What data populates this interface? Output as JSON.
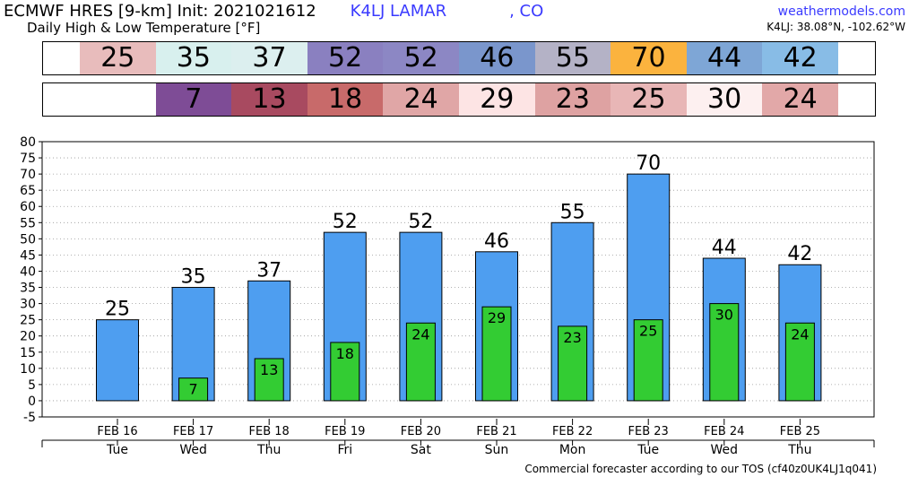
{
  "header": {
    "title": "ECMWF HRES [9-km] Init: 2021021612",
    "station": "K4LJ LAMAR",
    "state": ", CO",
    "subtitle": "Daily High & Low Temperature [°F]",
    "site": "weathermodels.com",
    "coords": "K4LJ: 38.08°N, -102.62°W"
  },
  "footer": "Commercial forecaster according to our TOS (cf40z0UK4LJ1q041)",
  "strips": {
    "high": [
      {
        "value": "25",
        "color": "#e8bcbc"
      },
      {
        "value": "35",
        "color": "#d8f0ee"
      },
      {
        "value": "37",
        "color": "#dcefef"
      },
      {
        "value": "52",
        "color": "#8a80c0"
      },
      {
        "value": "52",
        "color": "#8c87c4"
      },
      {
        "value": "46",
        "color": "#7a96cc"
      },
      {
        "value": "55",
        "color": "#b4b2c6"
      },
      {
        "value": "70",
        "color": "#fbb33e"
      },
      {
        "value": "44",
        "color": "#7ea6d6"
      },
      {
        "value": "42",
        "color": "#88bce6"
      }
    ],
    "low": [
      {
        "value": "",
        "color": "#ffffff"
      },
      {
        "value": "7",
        "color": "#7e4c96"
      },
      {
        "value": "13",
        "color": "#a84a60"
      },
      {
        "value": "18",
        "color": "#c86a6a"
      },
      {
        "value": "24",
        "color": "#e0a6a6"
      },
      {
        "value": "29",
        "color": "#fde4e4"
      },
      {
        "value": "23",
        "color": "#dea2a2"
      },
      {
        "value": "25",
        "color": "#e8b6b6"
      },
      {
        "value": "30",
        "color": "#fdf0f0"
      },
      {
        "value": "24",
        "color": "#e2a8a8"
      }
    ]
  },
  "chart_data": {
    "type": "bar",
    "categories": [
      "FEB 16",
      "FEB 17",
      "FEB 18",
      "FEB 19",
      "FEB 20",
      "FEB 21",
      "FEB 22",
      "FEB 23",
      "FEB 24",
      "FEB 25"
    ],
    "days": [
      "Tue",
      "Wed",
      "Thu",
      "Fri",
      "Sat",
      "Sun",
      "Mon",
      "Tue",
      "Wed",
      "Thu"
    ],
    "series": [
      {
        "values": [
          25,
          35,
          37,
          52,
          52,
          46,
          55,
          70,
          44,
          42
        ],
        "color": "#4e9ef0"
      },
      {
        "values": [
          null,
          7,
          13,
          18,
          24,
          29,
          23,
          25,
          30,
          24
        ],
        "color": "#33cc33"
      }
    ],
    "yticks": [
      -5,
      0,
      5,
      10,
      15,
      20,
      25,
      30,
      35,
      40,
      45,
      50,
      55,
      60,
      65,
      70,
      75,
      80
    ],
    "ylim": [
      -5,
      80
    ],
    "grid": true
  }
}
